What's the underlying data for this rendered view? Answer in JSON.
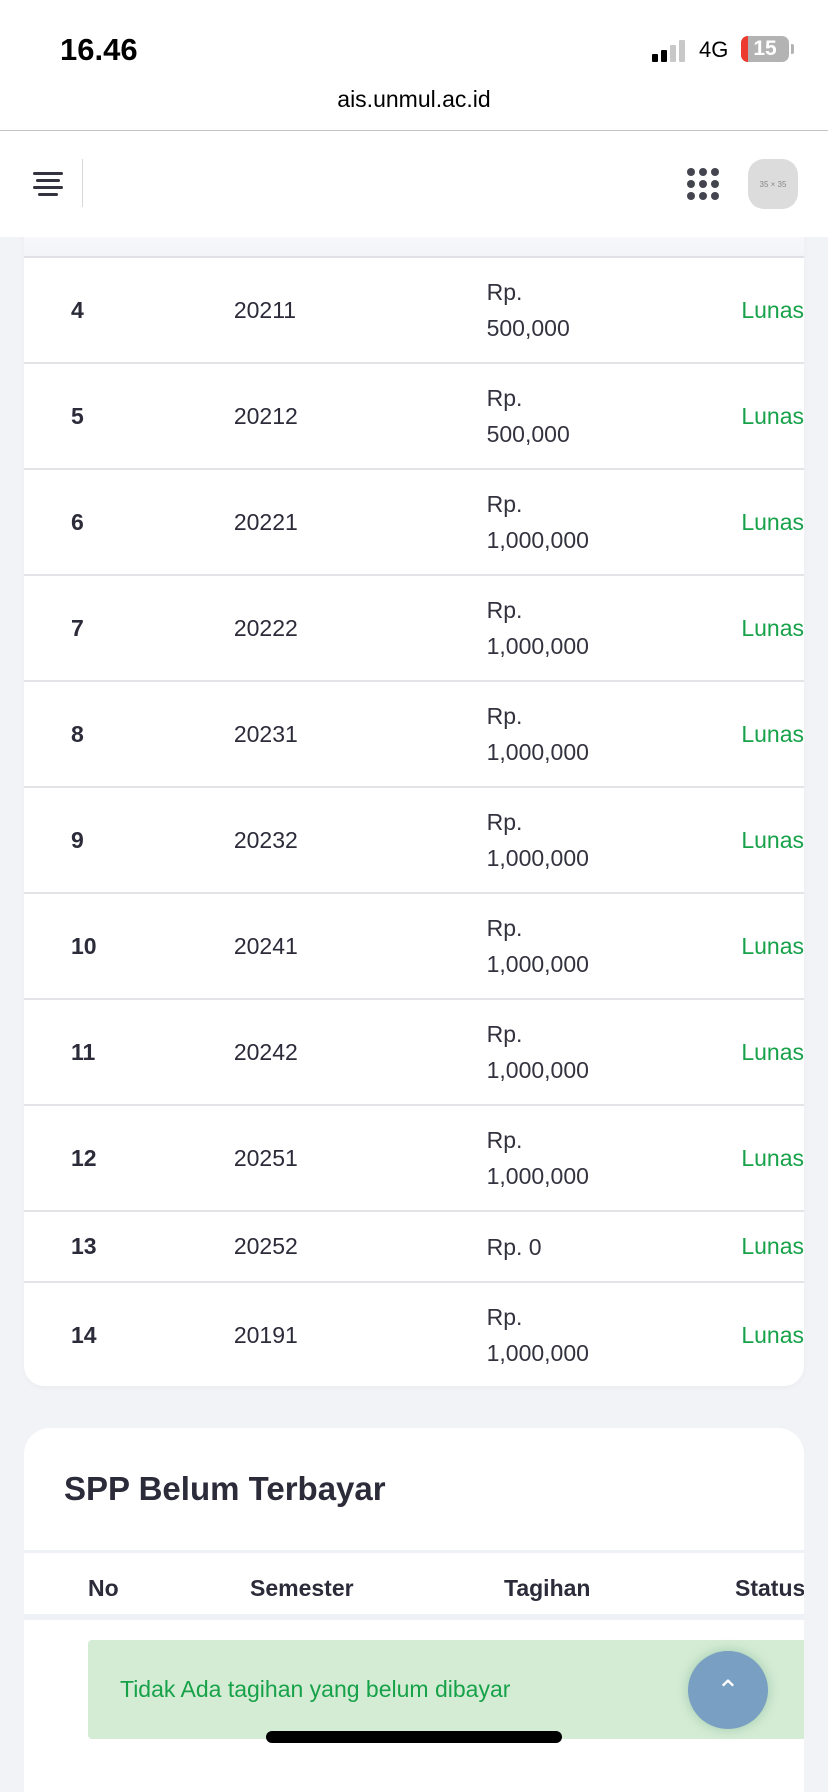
{
  "status_bar": {
    "time": "16.46",
    "network": "4G",
    "battery": "15"
  },
  "browser": {
    "url": "ais.unmul.ac.id"
  },
  "navbar": {
    "avatar_placeholder": "35 × 35"
  },
  "paid_table": {
    "rows": [
      {
        "no": "4",
        "semester": "20211",
        "tagihan": "Rp. 500,000",
        "status": "Lunas"
      },
      {
        "no": "5",
        "semester": "20212",
        "tagihan": "Rp. 500,000",
        "status": "Lunas"
      },
      {
        "no": "6",
        "semester": "20221",
        "tagihan": "Rp. 1,000,000",
        "status": "Lunas"
      },
      {
        "no": "7",
        "semester": "20222",
        "tagihan": "Rp. 1,000,000",
        "status": "Lunas"
      },
      {
        "no": "8",
        "semester": "20231",
        "tagihan": "Rp. 1,000,000",
        "status": "Lunas"
      },
      {
        "no": "9",
        "semester": "20232",
        "tagihan": "Rp. 1,000,000",
        "status": "Lunas"
      },
      {
        "no": "10",
        "semester": "20241",
        "tagihan": "Rp. 1,000,000",
        "status": "Lunas"
      },
      {
        "no": "11",
        "semester": "20242",
        "tagihan": "Rp. 1,000,000",
        "status": "Lunas"
      },
      {
        "no": "12",
        "semester": "20251",
        "tagihan": "Rp. 1,000,000",
        "status": "Lunas"
      },
      {
        "no": "13",
        "semester": "20252",
        "tagihan": "Rp. 0",
        "status": "Lunas"
      },
      {
        "no": "14",
        "semester": "20191",
        "tagihan": "Rp. 1,000,000",
        "status": "Lunas"
      }
    ]
  },
  "unpaid": {
    "title": "SPP Belum Terbayar",
    "headers": {
      "no": "No",
      "semester": "Semester",
      "tagihan": "Tagihan",
      "status": "Status"
    },
    "empty_message": "Tidak Ada tagihan yang belum dibayar"
  },
  "colors": {
    "status_green": "#17a24a",
    "alert_bg": "#d5ecd4",
    "fab": "#799fc2"
  }
}
